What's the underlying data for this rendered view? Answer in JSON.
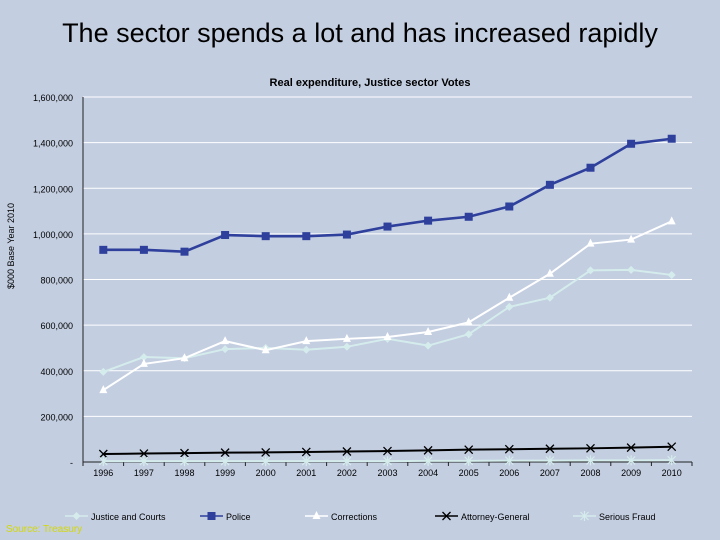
{
  "slide": {
    "title": "The sector spends a lot and has increased rapidly",
    "source": "Source: Treasury"
  },
  "chart_data": {
    "type": "line",
    "title": "Real expenditure, Justice sector Votes",
    "xlabel": "",
    "ylabel": "$000 Base Year 2010",
    "categories": [
      "1996",
      "1997",
      "1998",
      "1999",
      "2000",
      "2001",
      "2002",
      "2003",
      "2004",
      "2005",
      "2006",
      "2007",
      "2008",
      "2009",
      "2010"
    ],
    "ylim": [
      0,
      1600000
    ],
    "yticks": [
      0,
      200000,
      400000,
      600000,
      800000,
      1000000,
      1200000,
      1400000,
      1600000
    ],
    "ytick_labels": [
      "-",
      "200,000",
      "400,000",
      "600,000",
      "800,000",
      "1,000,000",
      "1,200,000",
      "1,400,000",
      "1,600,000"
    ],
    "grid": true,
    "legend": "bottom",
    "series": [
      {
        "name": "Justice and Courts",
        "color": "#d5ecec",
        "marker": "diamond",
        "values": [
          395000,
          460000,
          455000,
          495000,
          500000,
          492000,
          505000,
          540000,
          510000,
          560000,
          680000,
          720000,
          840000,
          842000,
          820000
        ]
      },
      {
        "name": "Police",
        "color": "#2e3f9c",
        "marker": "square",
        "values": [
          930000,
          930000,
          922000,
          995000,
          990000,
          990000,
          997000,
          1032000,
          1058000,
          1075000,
          1120000,
          1215000,
          1290000,
          1395000,
          1417000
        ]
      },
      {
        "name": "Corrections",
        "color": "#ffffff",
        "marker": "triangle",
        "values": [
          315000,
          430000,
          455000,
          530000,
          490000,
          530000,
          540000,
          548000,
          570000,
          612000,
          720000,
          825000,
          957000,
          975000,
          1055000
        ]
      },
      {
        "name": "Attorney-General",
        "color": "#000000",
        "marker": "x",
        "values": [
          35000,
          37000,
          39000,
          41000,
          42000,
          44000,
          46000,
          48000,
          51000,
          54000,
          56000,
          58000,
          60000,
          63000,
          67000
        ]
      },
      {
        "name": "Serious Fraud",
        "color": "#d5ecec",
        "marker": "star",
        "values": [
          4000,
          4000,
          4000,
          4000,
          4000,
          4000,
          4000,
          4000,
          5000,
          5000,
          6000,
          6000,
          7000,
          7000,
          8000
        ]
      }
    ]
  }
}
